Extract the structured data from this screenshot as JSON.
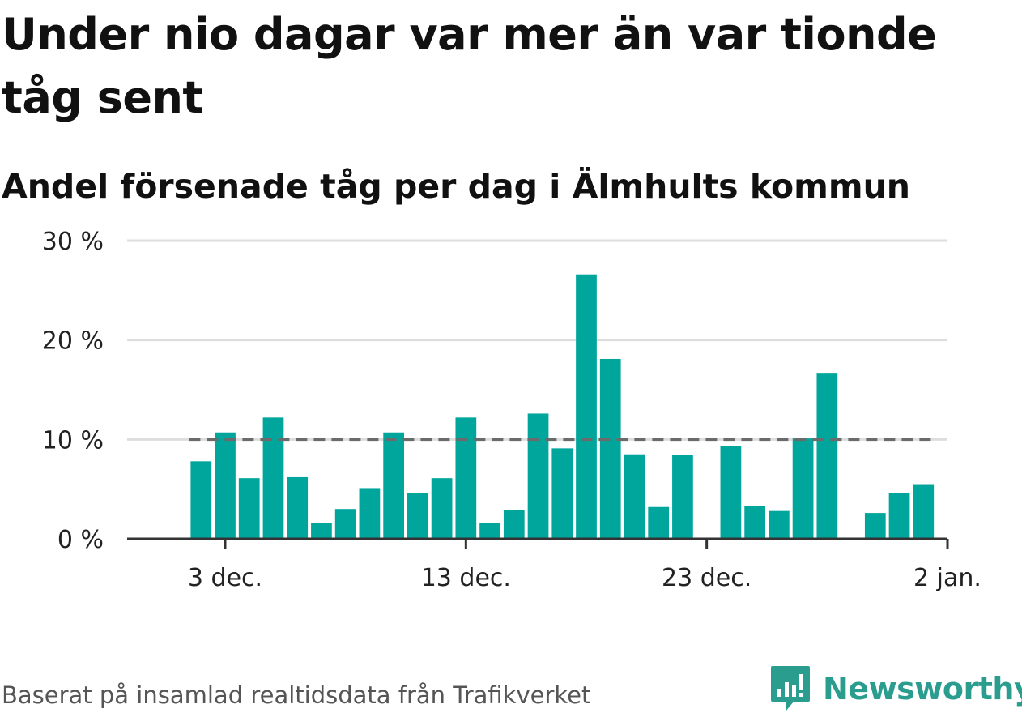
{
  "title": "Under nio dagar var mer än var tionde tåg sent",
  "subtitle": "Andel försenade tåg per dag i Älmhults kommun",
  "source": "Baserat på insamlad realtidsdata från Trafikverket",
  "brand": "Newsworthy",
  "colors": {
    "bar": "#00a69c",
    "reference": "#6b6b6b",
    "grid": "#dddddd",
    "axis": "#333333",
    "brand": "#2a9d8f"
  },
  "chart_data": {
    "type": "bar",
    "title": "Under nio dagar var mer än var tionde tåg sent",
    "subtitle": "Andel försenade tåg per dag i Älmhults kommun",
    "x_unit": "date",
    "x": [
      "2022-12-02",
      "2022-12-03",
      "2022-12-04",
      "2022-12-05",
      "2022-12-06",
      "2022-12-07",
      "2022-12-08",
      "2022-12-09",
      "2022-12-10",
      "2022-12-11",
      "2022-12-12",
      "2022-12-13",
      "2022-12-14",
      "2022-12-15",
      "2022-12-16",
      "2022-12-17",
      "2022-12-18",
      "2022-12-19",
      "2022-12-20",
      "2022-12-21",
      "2022-12-22",
      "2022-12-23",
      "2022-12-24",
      "2022-12-25",
      "2022-12-26",
      "2022-12-27",
      "2022-12-28",
      "2022-12-29",
      "2022-12-30",
      "2022-12-31",
      "2023-01-01"
    ],
    "values": [
      7.8,
      10.7,
      6.1,
      12.2,
      6.2,
      1.6,
      3.0,
      5.1,
      10.7,
      4.6,
      6.1,
      12.2,
      1.6,
      2.9,
      12.6,
      9.1,
      26.6,
      18.1,
      8.5,
      3.2,
      8.4,
      null,
      9.3,
      3.3,
      2.8,
      10.1,
      16.7,
      null,
      2.6,
      4.6,
      5.5
    ],
    "reference_line": {
      "value": 10,
      "from": "2022-12-02",
      "to": "2023-01-01",
      "style": "dashed"
    },
    "y_ticks": [
      "30 %",
      "20 %",
      "10 %",
      "0 %"
    ],
    "y_tick_values": [
      30,
      20,
      10,
      0
    ],
    "ylim": [
      0,
      30
    ],
    "x_ticks": [
      "3 dec.",
      "13 dec.",
      "23 dec.",
      "2 jan."
    ],
    "x_tick_dates": [
      "2022-12-03",
      "2022-12-13",
      "2022-12-23",
      "2023-01-02"
    ],
    "grid": true,
    "legend": "none"
  }
}
